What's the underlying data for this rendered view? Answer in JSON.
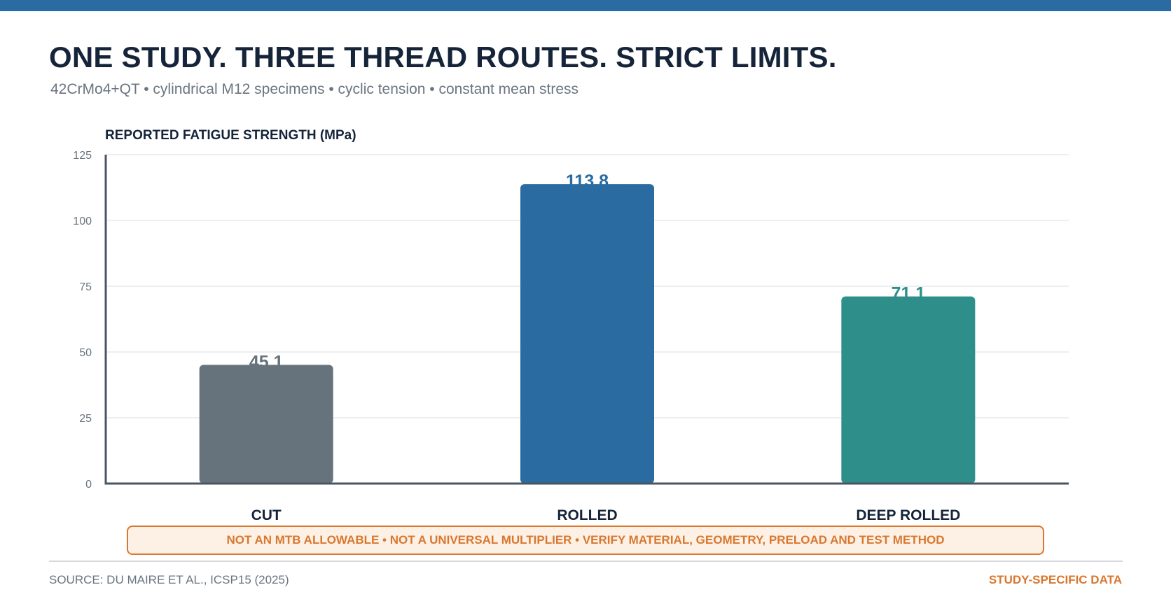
{
  "header": {
    "title": "ONE STUDY. THREE THREAD ROUTES. STRICT LIMITS.",
    "subtitle": "42CrMo4+QT • cylindrical M12 specimens • cyclic tension • constant mean stress"
  },
  "chart_data": {
    "type": "bar",
    "title": "",
    "ylabel": "REPORTED FATIGUE STRENGTH (MPa)",
    "xlabel": "",
    "categories": [
      "CUT",
      "ROLLED",
      "DEEP ROLLED"
    ],
    "values": [
      45.1,
      113.8,
      71.1
    ],
    "value_labels": [
      "45.1",
      "113.8",
      "71.1"
    ],
    "colors": [
      "#67737c",
      "#2a6ba1",
      "#2e8f8a"
    ],
    "ylim": [
      0,
      125
    ],
    "yticks": [
      0,
      25,
      50,
      75,
      100,
      125
    ],
    "grid": true,
    "legend": "none"
  },
  "warning": {
    "text": "NOT AN MTB ALLOWABLE • NOT A UNIVERSAL MULTIPLIER • VERIFY MATERIAL, GEOMETRY, PRELOAD AND TEST METHOD"
  },
  "footer": {
    "source": "SOURCE: DU MAIRE ET AL., ICSP15 (2025)",
    "badge": "STUDY-SPECIFIC DATA"
  },
  "colors": {
    "accent": "#2a6ba1",
    "warning": "#d9772e",
    "title": "#16243a",
    "muted": "#6b7580"
  }
}
